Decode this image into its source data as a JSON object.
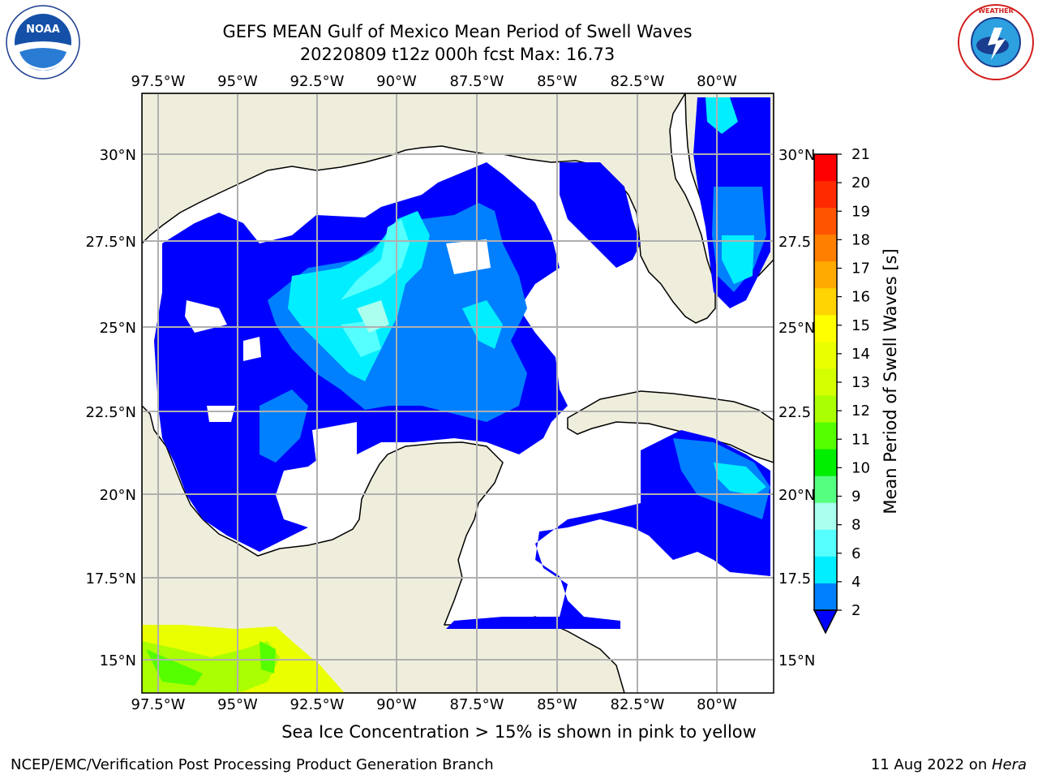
{
  "title_line1": "GEFS MEAN Gulf of Mexico Mean Period of Swell Waves",
  "title_line2": "20220809 t12z 000h fcst   Max: 16.73",
  "note": "Sea Ice Concentration > 15% is shown in pink to yellow",
  "footer_left": "NCEP/EMC/Verification Post Processing Product Generation Branch",
  "footer_right_date": "11 Aug 2022 on ",
  "footer_right_host": "Hera",
  "logos": {
    "left": "NOAA",
    "left_ring": "NATIONAL OCEANIC AND ATMOSPHERIC ADMINISTRATION · U.S. DEPARTMENT OF COMMERCE",
    "right_ring": "NATIONAL WEATHER SERVICE"
  },
  "map": {
    "lon_labels": [
      "97.5°W",
      "95°W",
      "92.5°W",
      "90°W",
      "87.5°W",
      "85°W",
      "82.5°W",
      "80°W"
    ],
    "lat_labels_left": [
      "30°N",
      "27.5°N",
      "25°N",
      "22.5°N",
      "20°N",
      "17.5°N",
      "15°N"
    ],
    "lat_labels_right": [
      "30°N",
      "27.5",
      "25°N",
      "22.5",
      "20°N",
      "17.5",
      "15°N"
    ],
    "land_color": "#efeedd",
    "grid_color": "#b0b0b0"
  },
  "colorbar": {
    "label": "Mean Period of Swell Waves [s]",
    "ticks": [
      "21",
      "20",
      "19",
      "18",
      "17",
      "16",
      "15",
      "14",
      "13",
      "12",
      "11",
      "10",
      "9",
      "8",
      "6",
      "4",
      "2"
    ],
    "colors": [
      "#ff0000",
      "#ff2a00",
      "#ff5500",
      "#ff8000",
      "#ffaa00",
      "#ffd400",
      "#ffff00",
      "#eaff00",
      "#d4ff00",
      "#aaff00",
      "#55ff00",
      "#00ee00",
      "#55ff80",
      "#aaffee",
      "#55ffff",
      "#00eeff",
      "#0080ff",
      "#0000ff"
    ]
  }
}
